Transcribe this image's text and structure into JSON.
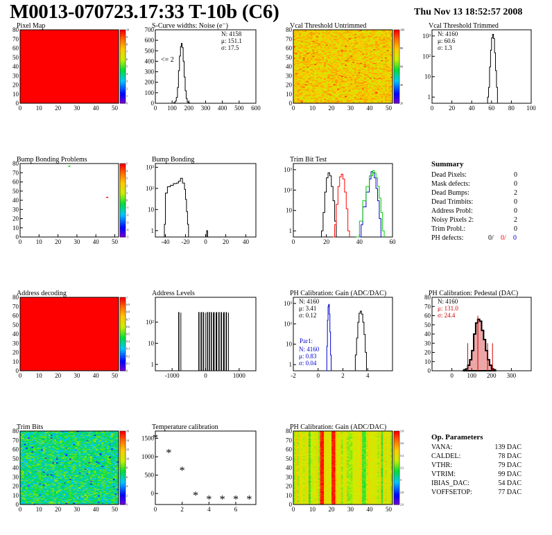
{
  "header": {
    "title": "M0013-070723.17:33 T-10b (C6)",
    "date": "Thu Nov 13 18:52:57 2008"
  },
  "colors": {
    "map_red": "#ff0000",
    "trim_red": "#ff0000",
    "trim_green": "#00cc00",
    "trim_blue": "#0000cc",
    "par1_blue": "#0000cc",
    "pedestal_red": "#cc0000"
  },
  "chart_data": [
    {
      "id": "pixel_map",
      "type": "heatmap",
      "title": "Pixel Map",
      "xlim": [
        0,
        52
      ],
      "ylim": [
        0,
        80
      ],
      "xticks": [
        "0",
        "10",
        "20",
        "30",
        "40",
        "50"
      ],
      "yticks": [
        "0",
        "10",
        "20",
        "30",
        "40",
        "50",
        "60",
        "70",
        "80"
      ],
      "fill": "uniform",
      "palette": "rainbow-4",
      "zticks": [
        "0",
        "1",
        "2",
        "3",
        "4",
        "5",
        "6",
        "7",
        "8",
        "9",
        "10"
      ]
    },
    {
      "id": "scurve_noise",
      "type": "histogram",
      "title": "S-Curve widths: Noise (e⁻)",
      "xlim": [
        0,
        600
      ],
      "ylim": [
        0,
        700
      ],
      "xticks": [
        "0",
        "100",
        "200",
        "300",
        "400",
        "500",
        "600"
      ],
      "yticks": [
        "0",
        "100",
        "200",
        "300",
        "400",
        "500",
        "600",
        "700"
      ],
      "stats": [
        "N: 4158",
        "μ: 151.1",
        "σ: 17.5"
      ],
      "annotation": "<= 2",
      "bins": [
        [
          100,
          0
        ],
        [
          110,
          6
        ],
        [
          118,
          20
        ],
        [
          125,
          55
        ],
        [
          132,
          150
        ],
        [
          138,
          310
        ],
        [
          144,
          450
        ],
        [
          150,
          540
        ],
        [
          155,
          570
        ],
        [
          160,
          530
        ],
        [
          166,
          400
        ],
        [
          172,
          250
        ],
        [
          178,
          120
        ],
        [
          184,
          45
        ],
        [
          190,
          12
        ],
        [
          196,
          3
        ],
        [
          205,
          0
        ]
      ]
    },
    {
      "id": "vcal_untrimmed",
      "type": "heatmap",
      "title": "Vcal Threshold Untrimmed",
      "xlim": [
        0,
        52
      ],
      "ylim": [
        0,
        80
      ],
      "xticks": [
        "0",
        "10",
        "20",
        "30",
        "40",
        "50"
      ],
      "yticks": [
        "0",
        "10",
        "20",
        "30",
        "40",
        "50",
        "60",
        "70",
        "80"
      ],
      "fill": "noisy",
      "palette": "rainbow-1",
      "zticks": [
        "20",
        "40",
        "60",
        "80",
        "100"
      ]
    },
    {
      "id": "vcal_trimmed",
      "type": "histogram",
      "title": "Vcal Threshold Trimmed",
      "xlim": [
        0,
        100
      ],
      "ylim": [
        0.5,
        2000
      ],
      "log_y": true,
      "xticks": [
        "0",
        "20",
        "40",
        "60",
        "80",
        "100"
      ],
      "yticks": [
        "1",
        "10",
        "10²",
        "10³"
      ],
      "stats": [
        "N: 4160",
        "μ: 60.6",
        "σ:  1.3"
      ],
      "bins": [
        [
          55,
          0.5
        ],
        [
          56,
          1
        ],
        [
          57,
          3
        ],
        [
          58,
          30
        ],
        [
          59,
          200
        ],
        [
          60,
          800
        ],
        [
          61,
          1200
        ],
        [
          62,
          750
        ],
        [
          63,
          150
        ],
        [
          64,
          20
        ],
        [
          65,
          3
        ],
        [
          66,
          0.5
        ]
      ]
    },
    {
      "id": "bump_problems",
      "type": "scatter",
      "title": "Bump Bonding Problems",
      "xlim": [
        0,
        52
      ],
      "ylim": [
        0,
        80
      ],
      "xticks": [
        "0",
        "10",
        "20",
        "30",
        "40",
        "50"
      ],
      "yticks": [
        "0",
        "10",
        "20",
        "30",
        "40",
        "50",
        "60",
        "70",
        "80"
      ],
      "points": [
        {
          "x": 26,
          "y": 77,
          "color": "#00cc00"
        },
        {
          "x": 46,
          "y": 43,
          "color": "#ff0000"
        }
      ],
      "zticks": [
        "-5",
        "-4",
        "-3",
        "-2",
        "-1",
        "0",
        "1",
        "2",
        "3",
        "4",
        "5"
      ]
    },
    {
      "id": "bump_bonding",
      "type": "histogram",
      "title": "Bump Bonding",
      "xlim": [
        -50,
        50
      ],
      "ylim": [
        0.5,
        1500
      ],
      "log_y": true,
      "xticks": [
        "-40",
        "-20",
        "0",
        "20",
        "40"
      ],
      "yticks": [
        "1",
        "10",
        "10²",
        "10³"
      ],
      "bins": [
        [
          -42,
          0.5
        ],
        [
          -41,
          2
        ],
        [
          -40,
          60
        ],
        [
          -38,
          120
        ],
        [
          -35,
          140
        ],
        [
          -32,
          170
        ],
        [
          -29,
          180
        ],
        [
          -27,
          220
        ],
        [
          -25,
          300
        ],
        [
          -23,
          180
        ],
        [
          -21,
          90
        ],
        [
          -20,
          30
        ],
        [
          -19,
          8
        ],
        [
          -18,
          2
        ],
        [
          -17,
          0.5
        ],
        [
          -16,
          0.5
        ],
        [
          0,
          0.5
        ],
        [
          1,
          1
        ],
        [
          2,
          0.5
        ]
      ]
    },
    {
      "id": "trim_bit_test",
      "type": "histogram",
      "title": "Trim Bit Test",
      "xlim": [
        0,
        60
      ],
      "ylim": [
        0.5,
        2000
      ],
      "log_y": true,
      "xticks": [
        "0",
        "20",
        "40",
        "60"
      ],
      "yticks": [
        "1",
        "10",
        "10²",
        "10³"
      ],
      "series": [
        {
          "color": "#000000",
          "bins": [
            [
              16,
              0.5
            ],
            [
              17,
              1
            ],
            [
              18,
              8
            ],
            [
              19,
              80
            ],
            [
              20,
              400
            ],
            [
              21,
              700
            ],
            [
              22,
              500
            ],
            [
              23,
              150
            ],
            [
              24,
              30
            ],
            [
              25,
              3
            ],
            [
              26,
              0.5
            ]
          ]
        },
        {
          "color": "#ff0000",
          "bins": [
            [
              24,
              0.5
            ],
            [
              25,
              2
            ],
            [
              26,
              20
            ],
            [
              27,
              150
            ],
            [
              28,
              450
            ],
            [
              29,
              600
            ],
            [
              30,
              350
            ],
            [
              31,
              80
            ],
            [
              32,
              12
            ],
            [
              33,
              1
            ],
            [
              34,
              0.5
            ]
          ]
        },
        {
          "color": "#0000cc",
          "bins": [
            [
              40,
              0.5
            ],
            [
              41,
              2
            ],
            [
              42,
              15
            ],
            [
              44,
              80
            ],
            [
              46,
              350
            ],
            [
              47,
              800
            ],
            [
              48,
              700
            ],
            [
              49,
              400
            ],
            [
              50,
              120
            ],
            [
              51,
              30
            ],
            [
              52,
              4
            ],
            [
              53,
              0.5
            ]
          ]
        },
        {
          "color": "#00cc00",
          "bins": [
            [
              38,
              0.5
            ],
            [
              40,
              3
            ],
            [
              42,
              30
            ],
            [
              44,
              150
            ],
            [
              46,
              500
            ],
            [
              48,
              900
            ],
            [
              49,
              700
            ],
            [
              50,
              400
            ],
            [
              51,
              150
            ],
            [
              52,
              40
            ],
            [
              53,
              8
            ],
            [
              54,
              1
            ],
            [
              55,
              0.5
            ]
          ]
        }
      ]
    },
    {
      "id": "summary",
      "type": "table",
      "title": "Summary",
      "rows": [
        {
          "label": "Dead Pixels:",
          "value": "0"
        },
        {
          "label": "Mask defects:",
          "value": "0"
        },
        {
          "label": "Dead Bumps:",
          "value": "2"
        },
        {
          "label": "Dead Trimbits:",
          "value": "0"
        },
        {
          "label": "Address Probl:",
          "value": "0"
        },
        {
          "label": "Noisy Pixels 2:",
          "value": "2"
        },
        {
          "label": "Trim Probl.:",
          "value": "0"
        }
      ],
      "ph_defects": {
        "label": "PH defects:",
        "values": [
          "0/",
          "0/",
          "0"
        ]
      }
    },
    {
      "id": "address_decoding",
      "type": "heatmap",
      "title": "Address decoding",
      "xlim": [
        0,
        52
      ],
      "ylim": [
        0,
        80
      ],
      "xticks": [
        "0",
        "10",
        "20",
        "30",
        "40",
        "50"
      ],
      "yticks": [
        "0",
        "10",
        "20",
        "30",
        "40",
        "50",
        "60",
        "70",
        "80"
      ],
      "fill": "uniform",
      "palette": "rainbow-4",
      "zticks": [
        "0",
        "0.1",
        "0.2",
        "0.3",
        "0.4",
        "0.5",
        "0.6",
        "0.7",
        "0.8",
        "0.9",
        "1"
      ]
    },
    {
      "id": "address_levels",
      "type": "histogram",
      "title": "Address Levels",
      "xlim": [
        -1500,
        1500
      ],
      "ylim": [
        0.5,
        1500
      ],
      "log_y": true,
      "xticks": [
        "-1000",
        "0",
        "1000"
      ],
      "yticks": [
        "1",
        "10",
        "10²"
      ],
      "spikes": [
        -800,
        -200,
        -130,
        -70,
        50,
        110,
        170,
        250,
        330,
        400,
        470,
        550,
        620
      ]
    },
    {
      "id": "ph_gain",
      "type": "histogram",
      "title": "PH Calibration: Gain (ADC/DAC)",
      "xlim": [
        -2,
        6
      ],
      "ylim": [
        0.5,
        2000
      ],
      "log_y": true,
      "xticks": [
        "-2",
        "0",
        "2",
        "4"
      ],
      "yticks": [
        "1",
        "10",
        "10²",
        "10³"
      ],
      "stats": [
        "N: 4160",
        "μ: 3.41",
        "σ: 0.12"
      ],
      "par1_title": "Par1:",
      "par1_stats": [
        "N: 4160",
        "μ: 0.83",
        "σ: 0.04"
      ],
      "series": [
        {
          "color": "#000000",
          "bins": [
            [
              2.9,
              0.5
            ],
            [
              3.0,
              3
            ],
            [
              3.1,
              20
            ],
            [
              3.2,
              120
            ],
            [
              3.3,
              330
            ],
            [
              3.4,
              420
            ],
            [
              3.5,
              300
            ],
            [
              3.6,
              120
            ],
            [
              3.7,
              30
            ],
            [
              3.8,
              4
            ],
            [
              3.9,
              0.5
            ]
          ]
        },
        {
          "color": "#0000cc",
          "bins": [
            [
              0.65,
              0.5
            ],
            [
              0.7,
              8
            ],
            [
              0.75,
              150
            ],
            [
              0.8,
              700
            ],
            [
              0.85,
              900
            ],
            [
              0.9,
              300
            ],
            [
              0.95,
              40
            ],
            [
              1.0,
              3
            ],
            [
              1.05,
              0.5
            ]
          ]
        }
      ]
    },
    {
      "id": "ph_pedestal",
      "type": "histogram",
      "title": "PH Calibration: Pedestal (DAC)",
      "xlim": [
        -100,
        400
      ],
      "ylim": [
        0,
        80
      ],
      "xticks": [
        "0",
        "100",
        "200",
        "300"
      ],
      "yticks": [
        "0",
        "10",
        "20",
        "30",
        "40",
        "50",
        "60",
        "70",
        "80"
      ],
      "stats": [
        "N: 4160",
        "μ: 131.0",
        "σ: 24.4"
      ],
      "bins": [
        [
          55,
          0
        ],
        [
          60,
          1
        ],
        [
          70,
          2
        ],
        [
          80,
          6
        ],
        [
          90,
          12
        ],
        [
          100,
          22
        ],
        [
          110,
          40
        ],
        [
          120,
          52
        ],
        [
          130,
          56
        ],
        [
          140,
          54
        ],
        [
          150,
          44
        ],
        [
          160,
          34
        ],
        [
          170,
          22
        ],
        [
          180,
          12
        ],
        [
          190,
          6
        ],
        [
          200,
          2
        ],
        [
          210,
          1
        ],
        [
          220,
          0
        ]
      ],
      "markers": [
        80,
        131,
        180,
        205
      ]
    },
    {
      "id": "trim_bits",
      "type": "heatmap",
      "title": "Trim Bits",
      "xlim": [
        0,
        52
      ],
      "ylim": [
        0,
        80
      ],
      "xticks": [
        "0",
        "10",
        "20",
        "30",
        "40",
        "50"
      ],
      "yticks": [
        "0",
        "10",
        "20",
        "30",
        "40",
        "50",
        "60",
        "70",
        "80"
      ],
      "fill": "noisy",
      "palette": "rainbow-2",
      "zticks": [
        "0",
        "2",
        "4",
        "6",
        "8",
        "10",
        "12",
        "14",
        "16"
      ]
    },
    {
      "id": "temperature_calibration",
      "type": "scatter",
      "title": "Temperature calibration",
      "xlim": [
        0,
        7.5
      ],
      "ylim": [
        -300,
        1700
      ],
      "xticks": [
        "0",
        "2",
        "4",
        "6"
      ],
      "yticks": [
        "0",
        "500",
        "1000",
        "1500"
      ],
      "points": [
        {
          "x": 0,
          "y": 1530
        },
        {
          "x": 1,
          "y": 1120
        },
        {
          "x": 2,
          "y": 640
        },
        {
          "x": 3,
          "y": -40
        },
        {
          "x": 4,
          "y": -140
        },
        {
          "x": 5,
          "y": -140
        },
        {
          "x": 6,
          "y": -140
        },
        {
          "x": 7,
          "y": -140
        }
      ],
      "marker": "*"
    },
    {
      "id": "ph_gain_map",
      "type": "heatmap",
      "title": "PH Calibration: Gain (ADC/DAC)",
      "xlim": [
        0,
        52
      ],
      "ylim": [
        0,
        80
      ],
      "xticks": [
        "0",
        "10",
        "20",
        "30",
        "40",
        "50"
      ],
      "yticks": [
        "0",
        "10",
        "20",
        "30",
        "40",
        "50",
        "60",
        "70",
        "80"
      ],
      "fill": "columns",
      "palette": "rainbow-3",
      "zticks": [
        "2.6",
        "2.8",
        "3",
        "3.2",
        "3.4",
        "3.6",
        "3.8"
      ]
    },
    {
      "id": "op_parameters",
      "type": "table",
      "title": "Op. Parameters",
      "rows": [
        {
          "label": "VANA:",
          "value": "139 DAC"
        },
        {
          "label": "CALDEL:",
          "value": "78 DAC"
        },
        {
          "label": "VTHR:",
          "value": "79 DAC"
        },
        {
          "label": "VTRIM:",
          "value": "99 DAC"
        },
        {
          "label": "IBIAS_DAC:",
          "value": "54 DAC"
        },
        {
          "label": "VOFFSETOP:",
          "value": "77 DAC"
        }
      ]
    }
  ]
}
